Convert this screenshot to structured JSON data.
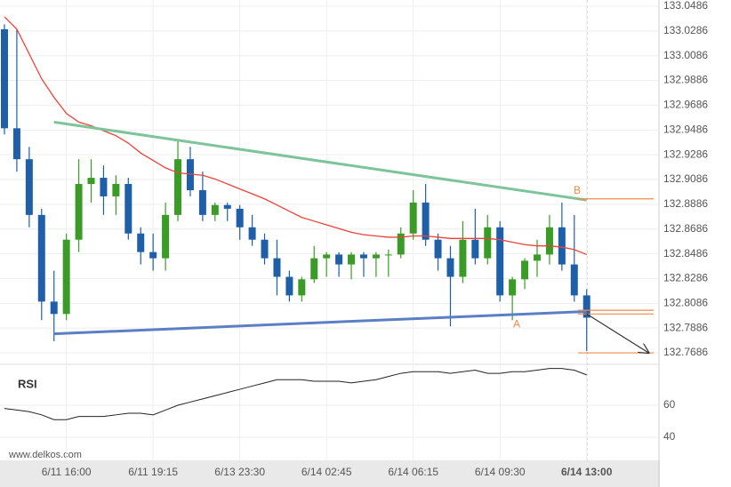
{
  "chart_data": [
    {
      "type": "candlestick",
      "x_labels": [
        null,
        null,
        null,
        null,
        null,
        "6/11 16:00",
        null,
        null,
        null,
        null,
        null,
        null,
        "6/11 19:15",
        null,
        null,
        null,
        null,
        null,
        null,
        "6/13 23:30",
        null,
        null,
        null,
        null,
        null,
        null,
        "6/14 02:45",
        null,
        null,
        null,
        null,
        null,
        null,
        "6/14 06:15",
        null,
        null,
        null,
        null,
        null,
        null,
        "6/14 09:30",
        null,
        null,
        null,
        null,
        null,
        null,
        "6/14 13:00"
      ],
      "open": [
        133.03,
        132.95,
        132.925,
        132.88,
        132.81,
        132.8,
        132.86,
        132.905,
        132.91,
        132.895,
        132.905,
        132.865,
        132.85,
        132.845,
        132.88,
        132.925,
        132.9,
        132.88,
        132.888,
        132.885,
        132.87,
        132.86,
        132.845,
        132.83,
        132.815,
        132.828,
        132.845,
        132.848,
        132.84,
        132.848,
        132.845,
        132.848,
        132.848,
        132.865,
        132.89,
        132.86,
        132.845,
        132.83,
        132.86,
        132.845,
        132.87,
        132.815,
        132.828,
        132.843,
        132.848,
        132.87,
        132.84,
        132.815
      ],
      "high": [
        133.034,
        133.03,
        132.935,
        132.885,
        132.835,
        132.865,
        132.925,
        132.925,
        132.92,
        132.912,
        132.91,
        132.87,
        132.865,
        132.89,
        132.94,
        132.935,
        132.915,
        132.89,
        132.89,
        132.888,
        132.88,
        132.865,
        132.86,
        132.835,
        132.83,
        132.855,
        132.85,
        132.85,
        132.85,
        132.85,
        132.85,
        132.852,
        132.87,
        132.9,
        132.905,
        132.865,
        132.855,
        132.875,
        132.885,
        132.88,
        132.875,
        132.83,
        132.845,
        132.86,
        132.88,
        132.89,
        132.88,
        132.82
      ],
      "low": [
        132.945,
        132.915,
        132.87,
        132.795,
        132.778,
        132.795,
        132.85,
        132.89,
        132.88,
        132.88,
        132.86,
        132.84,
        132.835,
        132.835,
        132.875,
        132.895,
        132.875,
        132.875,
        132.875,
        132.86,
        132.855,
        132.84,
        132.815,
        132.81,
        132.81,
        132.825,
        132.83,
        132.83,
        132.828,
        132.83,
        132.83,
        132.83,
        132.845,
        132.86,
        132.855,
        132.835,
        132.79,
        132.825,
        132.84,
        132.84,
        132.81,
        132.795,
        132.82,
        132.83,
        132.84,
        132.835,
        132.81,
        132.77
      ],
      "close": [
        132.95,
        132.925,
        132.88,
        132.81,
        132.8,
        132.86,
        132.905,
        132.91,
        132.895,
        132.905,
        132.865,
        132.85,
        132.845,
        132.88,
        132.925,
        132.9,
        132.88,
        132.888,
        132.885,
        132.87,
        132.86,
        132.845,
        132.83,
        132.815,
        132.828,
        132.845,
        132.848,
        132.84,
        132.848,
        132.845,
        132.848,
        132.848,
        132.865,
        132.89,
        132.86,
        132.845,
        132.83,
        132.86,
        132.845,
        132.87,
        132.815,
        132.828,
        132.843,
        132.848,
        132.87,
        132.84,
        132.815,
        132.797
      ],
      "up_color": "#3a9b27",
      "down_color": "#1f5fa8",
      "ma": {
        "color": "#e8433a",
        "values": [
          133.04,
          133.03,
          133.01,
          132.99,
          132.975,
          132.962,
          132.955,
          132.952,
          132.948,
          132.944,
          132.938,
          132.93,
          132.924,
          132.918,
          132.914,
          132.913,
          132.912,
          132.909,
          132.905,
          132.901,
          132.897,
          132.893,
          132.888,
          132.883,
          132.878,
          132.875,
          132.872,
          132.869,
          132.866,
          132.864,
          132.863,
          132.862,
          132.862,
          132.863,
          132.863,
          132.862,
          132.861,
          132.861,
          132.861,
          132.861,
          132.86,
          132.858,
          132.856,
          132.855,
          132.855,
          132.854,
          132.852,
          132.848
        ]
      },
      "trendlines": [
        {
          "color": "#7dc49a",
          "points": [
            [
              4,
              132.955
            ],
            [
              47,
              132.892
            ]
          ]
        },
        {
          "color": "#5b7fc4",
          "points": [
            [
              4,
              132.784
            ],
            [
              47,
              132.802
            ]
          ]
        }
      ],
      "levels": [
        {
          "label": "B",
          "value": 132.893
        },
        {
          "label": "A",
          "value": 132.8
        },
        {
          "value": 132.803
        },
        {
          "value": 132.7686
        }
      ],
      "arrow": [
        [
          47,
          132.8
        ],
        [
          52,
          132.7686
        ]
      ],
      "ylim": [
        132.7593,
        133.0536
      ],
      "yticks": [
        133.0486,
        133.0286,
        133.0086,
        132.9886,
        132.9686,
        132.9486,
        132.9286,
        132.9086,
        132.8886,
        132.8686,
        132.8486,
        132.8286,
        132.8086,
        132.7886,
        132.7686
      ],
      "watermark": "www.delkos.com"
    },
    {
      "type": "line",
      "title": "RSI",
      "color": "#222",
      "values": [
        58,
        57,
        56,
        54,
        51,
        51,
        53,
        53,
        53,
        54,
        55,
        55,
        54,
        57,
        60,
        62,
        64,
        66,
        68,
        70,
        72,
        74,
        76,
        76,
        76,
        75,
        75,
        75,
        74,
        75,
        76,
        78,
        80,
        81,
        81,
        81,
        80,
        81,
        82,
        80,
        80,
        81,
        81,
        82,
        83,
        83,
        82,
        79
      ],
      "ylim": [
        27.2,
        85.6
      ],
      "yticks": [
        40,
        60
      ]
    }
  ]
}
